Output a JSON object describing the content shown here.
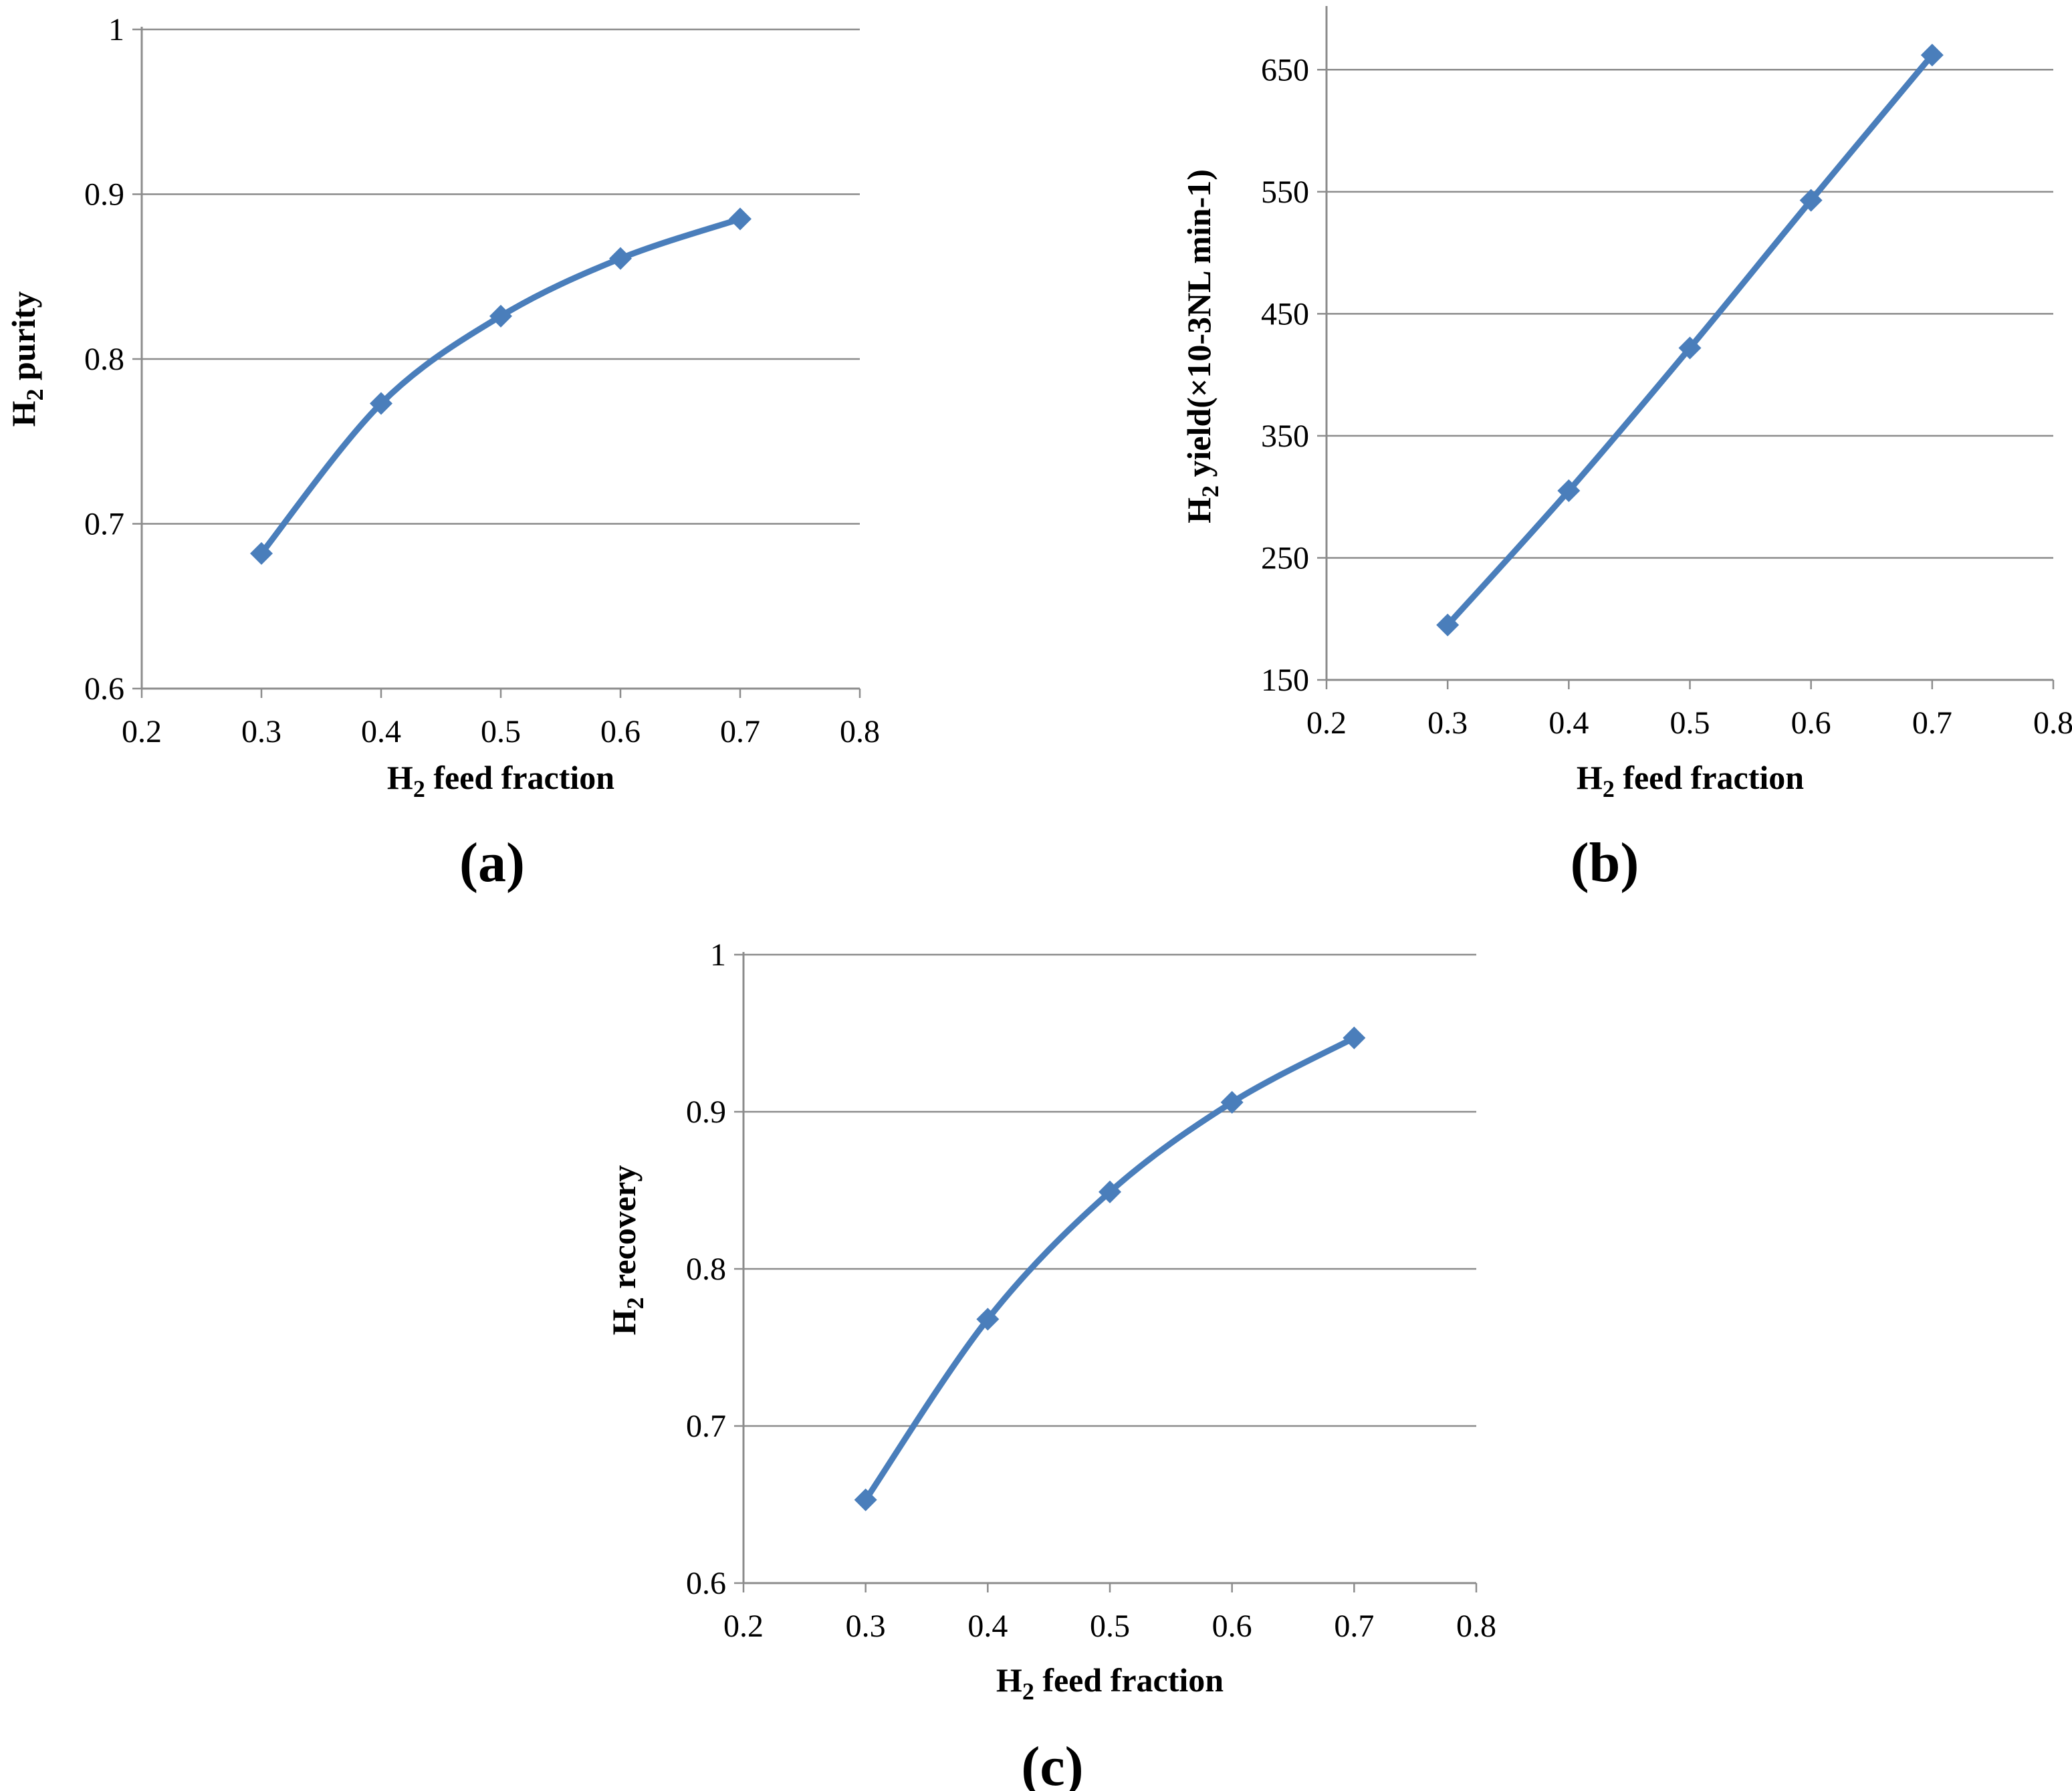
{
  "chart_data": [
    {
      "type": "line",
      "panel_label": "(a)",
      "ylabel_main": "H",
      "ylabel_sub": "2",
      "ylabel_rest": " purity",
      "xlabel_main": "H",
      "xlabel_sub": "2",
      "xlabel_rest": " feed fraction",
      "x": [
        0.3,
        0.4,
        0.5,
        0.6,
        0.7
      ],
      "series": [
        {
          "values": [
            0.682,
            0.773,
            0.826,
            0.861,
            0.885
          ]
        }
      ],
      "xlim": [
        0.2,
        0.8
      ],
      "ylim": [
        0.6,
        1.0
      ],
      "xticks": [
        "0.2",
        "0.3",
        "0.4",
        "0.5",
        "0.6",
        "0.7",
        "0.8"
      ],
      "yticks": [
        "0.6",
        "0.7",
        "0.8",
        "0.9",
        "1"
      ],
      "grid": true,
      "marker": "diamond",
      "color": "#4a7ebb"
    },
    {
      "type": "line",
      "panel_label": "(b)",
      "ylabel_main": "H",
      "ylabel_sub": "2",
      "ylabel_rest": " yield(×10-3NL min-1)",
      "xlabel_main": "H",
      "xlabel_sub": "2",
      "xlabel_rest": " feed fraction",
      "x": [
        0.3,
        0.4,
        0.5,
        0.6,
        0.7
      ],
      "series": [
        {
          "values": [
            195,
            305,
            422,
            543,
            662
          ]
        }
      ],
      "xlim": [
        0.2,
        0.8
      ],
      "ylim": [
        150,
        700
      ],
      "xticks": [
        "0.2",
        "0.3",
        "0.4",
        "0.5",
        "0.6",
        "0.7",
        "0.8"
      ],
      "yticks": [
        "150",
        "250",
        "350",
        "450",
        "550",
        "650"
      ],
      "grid": true,
      "marker": "diamond",
      "color": "#4a7ebb"
    },
    {
      "type": "line",
      "panel_label": "(c)",
      "ylabel_main": "H",
      "ylabel_sub": "2",
      "ylabel_rest": " recovery",
      "xlabel_main": "H",
      "xlabel_sub": "2",
      "xlabel_rest": " feed fraction",
      "x": [
        0.3,
        0.4,
        0.5,
        0.6,
        0.7
      ],
      "series": [
        {
          "values": [
            0.653,
            0.768,
            0.849,
            0.906,
            0.947
          ]
        }
      ],
      "xlim": [
        0.2,
        0.8
      ],
      "ylim": [
        0.6,
        1.0
      ],
      "xticks": [
        "0.2",
        "0.3",
        "0.4",
        "0.5",
        "0.6",
        "0.7",
        "0.8"
      ],
      "yticks": [
        "0.6",
        "0.7",
        "0.8",
        "0.9",
        "1"
      ],
      "grid": true,
      "marker": "diamond",
      "color": "#4a7ebb"
    }
  ]
}
